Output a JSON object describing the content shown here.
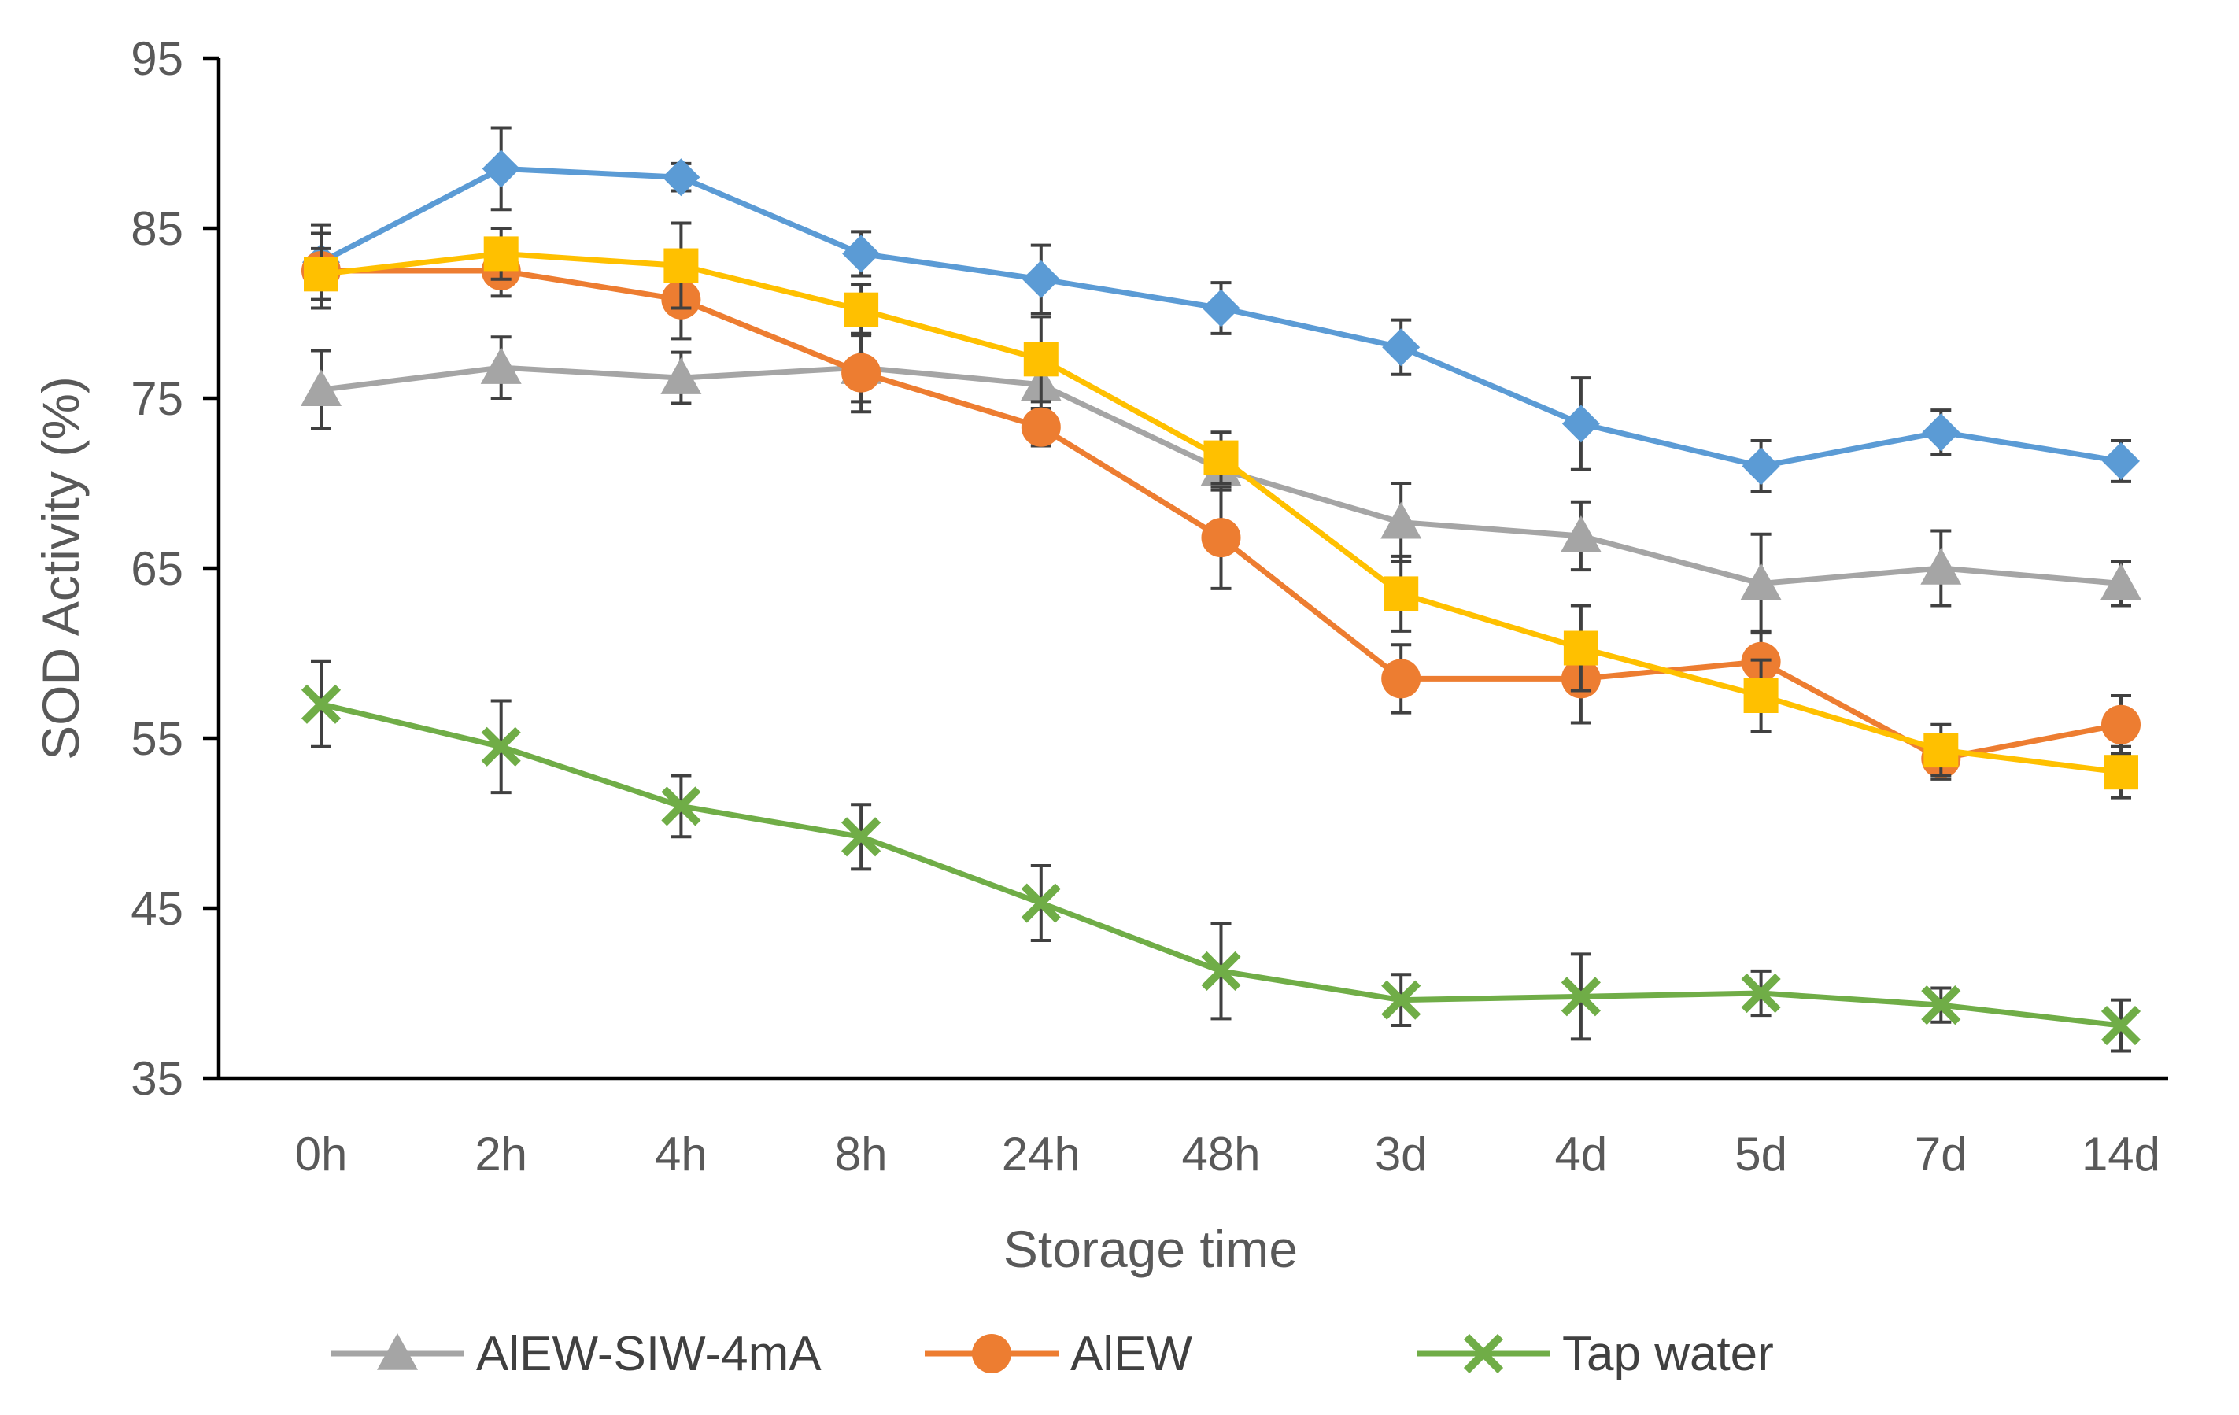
{
  "chart_data": {
    "type": "line",
    "title": "",
    "xlabel": "Storage time",
    "ylabel": "SOD Activity (%)",
    "ylim": [
      35,
      95
    ],
    "yticks": [
      35,
      45,
      55,
      65,
      75,
      85,
      95
    ],
    "grid": false,
    "legend_position": "bottom",
    "categories": [
      "0h",
      "2h",
      "4h",
      "8h",
      "24h",
      "48h",
      "3d",
      "4d",
      "5d",
      "7d",
      "14d"
    ],
    "series": [
      {
        "name": "",
        "in_legend": false,
        "color": "#5B9BD5",
        "marker": "diamond",
        "values": [
          83.0,
          88.5,
          88.0,
          83.5,
          82.0,
          80.3,
          78.0,
          73.5,
          71.0,
          73.0,
          71.3
        ],
        "errors": [
          2.2,
          2.4,
          0.8,
          1.3,
          2.0,
          1.5,
          1.6,
          2.7,
          1.5,
          1.3,
          1.2
        ]
      },
      {
        "name": "AlEW-SIW-4mA",
        "in_legend": true,
        "color": "#A5A5A5",
        "marker": "triangle",
        "values": [
          75.5,
          76.8,
          76.2,
          76.8,
          75.8,
          70.8,
          67.7,
          66.9,
          64.1,
          65.0,
          64.1
        ],
        "errors": [
          2.3,
          1.8,
          1.5,
          2.0,
          2.0,
          1.2,
          2.3,
          2.0,
          2.9,
          2.2,
          1.3
        ]
      },
      {
        "name": "AlEW",
        "in_legend": true,
        "color": "#ED7D31",
        "marker": "circle",
        "values": [
          82.5,
          82.5,
          80.8,
          76.5,
          73.3,
          66.8,
          58.5,
          58.5,
          59.5,
          53.8,
          55.8
        ],
        "errors": [
          2.2,
          1.5,
          2.3,
          2.3,
          1.1,
          3.0,
          2.0,
          2.6,
          1.8,
          1.2,
          1.7
        ]
      },
      {
        "name": "",
        "in_legend": false,
        "color": "#FFC000",
        "marker": "square",
        "values": [
          82.3,
          83.5,
          82.8,
          80.2,
          77.3,
          71.5,
          63.5,
          60.3,
          57.5,
          54.3,
          53.0
        ],
        "errors": [
          1.5,
          1.5,
          2.5,
          1.5,
          2.5,
          1.5,
          2.2,
          2.5,
          2.1,
          1.5,
          1.5
        ]
      },
      {
        "name": "Tap water",
        "in_legend": true,
        "color": "#70AD47",
        "marker": "x",
        "values": [
          57.0,
          54.5,
          51.0,
          49.2,
          45.3,
          41.3,
          39.6,
          39.8,
          40.0,
          39.3,
          38.1
        ],
        "errors": [
          2.5,
          2.7,
          1.8,
          1.9,
          2.2,
          2.8,
          1.5,
          2.5,
          1.3,
          1.0,
          1.5
        ]
      }
    ]
  }
}
